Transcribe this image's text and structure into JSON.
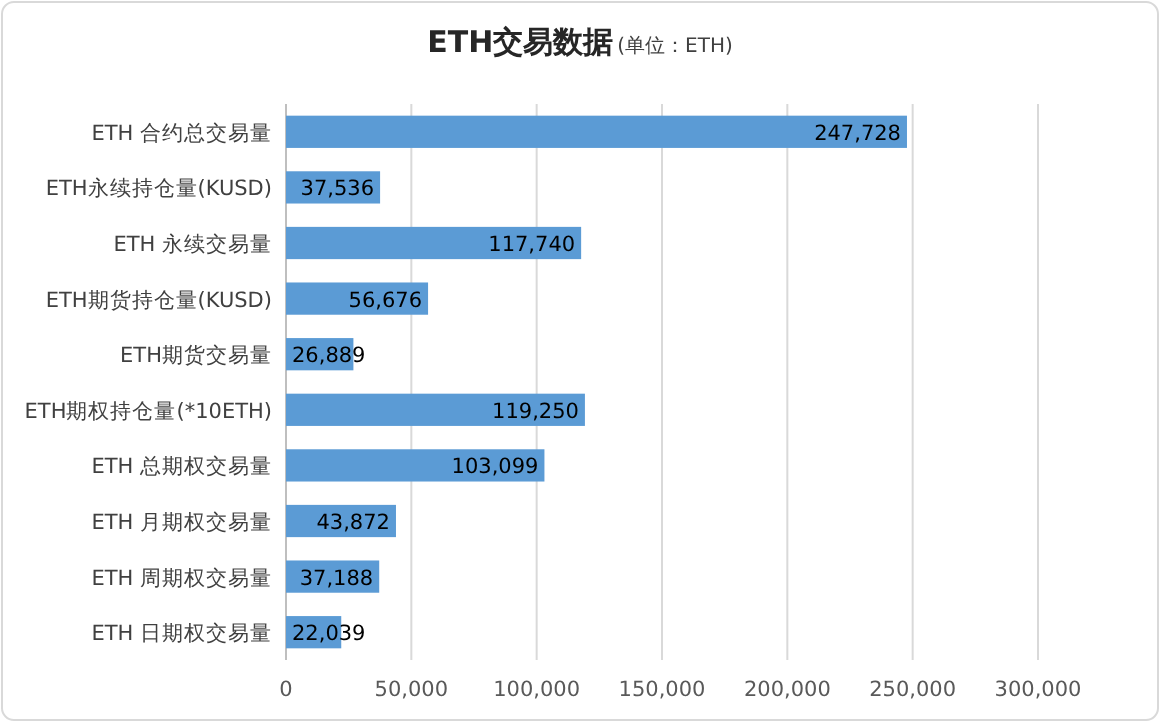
{
  "chart_data": {
    "type": "bar",
    "orientation": "horizontal",
    "title": "ETH交易数据",
    "subtitle": "(单位：ETH)",
    "categories": [
      "ETH 合约总交易量",
      "ETH永续持仓量(KUSD)",
      "ETH 永续交易量",
      "ETH期货持仓量(KUSD)",
      "ETH期货交易量",
      "ETH期权持仓量(*10ETH)",
      "ETH 总期权交易量",
      "ETH 月期权交易量",
      "ETH 周期权交易量",
      "ETH 日期权交易量"
    ],
    "values": [
      247728,
      37536,
      117740,
      56676,
      26889,
      119250,
      103099,
      43872,
      37188,
      22039
    ],
    "value_labels": [
      "247,728",
      "37,536",
      "117,740",
      "56,676",
      "26,889",
      "119,250",
      "103,099",
      "43,872",
      "37,188",
      "22,039"
    ],
    "color": "#5b9bd5",
    "xlim": [
      0,
      300000
    ],
    "xticks": [
      {
        "value": 0,
        "label": "0"
      },
      {
        "value": 50000,
        "label": "50,000"
      },
      {
        "value": 100000,
        "label": "100,000"
      },
      {
        "value": 150000,
        "label": "150,000"
      },
      {
        "value": 200000,
        "label": "200,000"
      },
      {
        "value": 250000,
        "label": "250,000"
      },
      {
        "value": 300000,
        "label": "300,000"
      }
    ],
    "grid": "x"
  }
}
